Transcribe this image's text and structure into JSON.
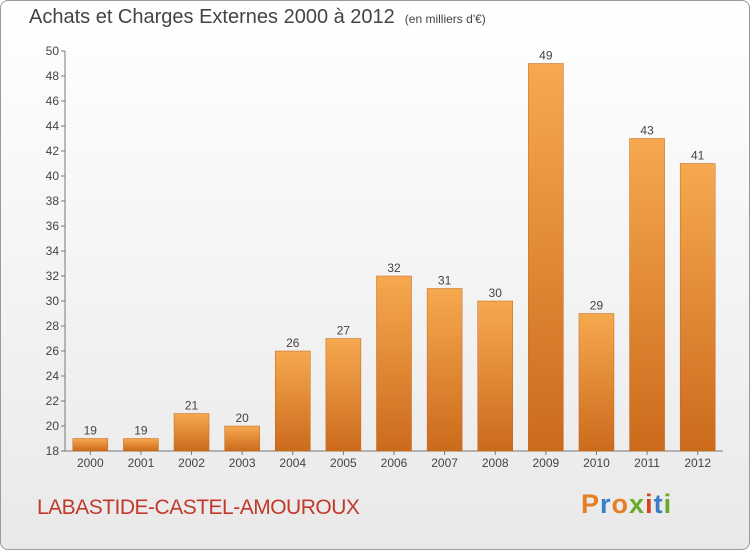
{
  "title": "Achats et Charges Externes 2000 à 2012",
  "subtitle": "(en milliers d'€)",
  "commune": "LABASTIDE-CASTEL-AMOUROUX",
  "logo": {
    "text": "Proxiti",
    "letters": [
      "P",
      "r",
      "o",
      "x",
      "i",
      "t",
      "i"
    ]
  },
  "colors": {
    "bar_light": "#f6a94f",
    "bar_dark": "#cc6a1c",
    "commune": "#c0392b",
    "text": "#444444"
  },
  "chart_data": {
    "type": "bar",
    "categories": [
      "2000",
      "2001",
      "2002",
      "2003",
      "2004",
      "2005",
      "2006",
      "2007",
      "2008",
      "2009",
      "2010",
      "2011",
      "2012"
    ],
    "values": [
      19,
      19,
      21,
      20,
      26,
      27,
      32,
      31,
      30,
      49,
      29,
      43,
      41
    ],
    "ylim": [
      18,
      50
    ],
    "yticks": [
      18,
      20,
      22,
      24,
      26,
      28,
      30,
      32,
      34,
      36,
      38,
      40,
      42,
      44,
      46,
      48,
      50
    ],
    "grid": false,
    "xlabel": "",
    "ylabel": ""
  }
}
